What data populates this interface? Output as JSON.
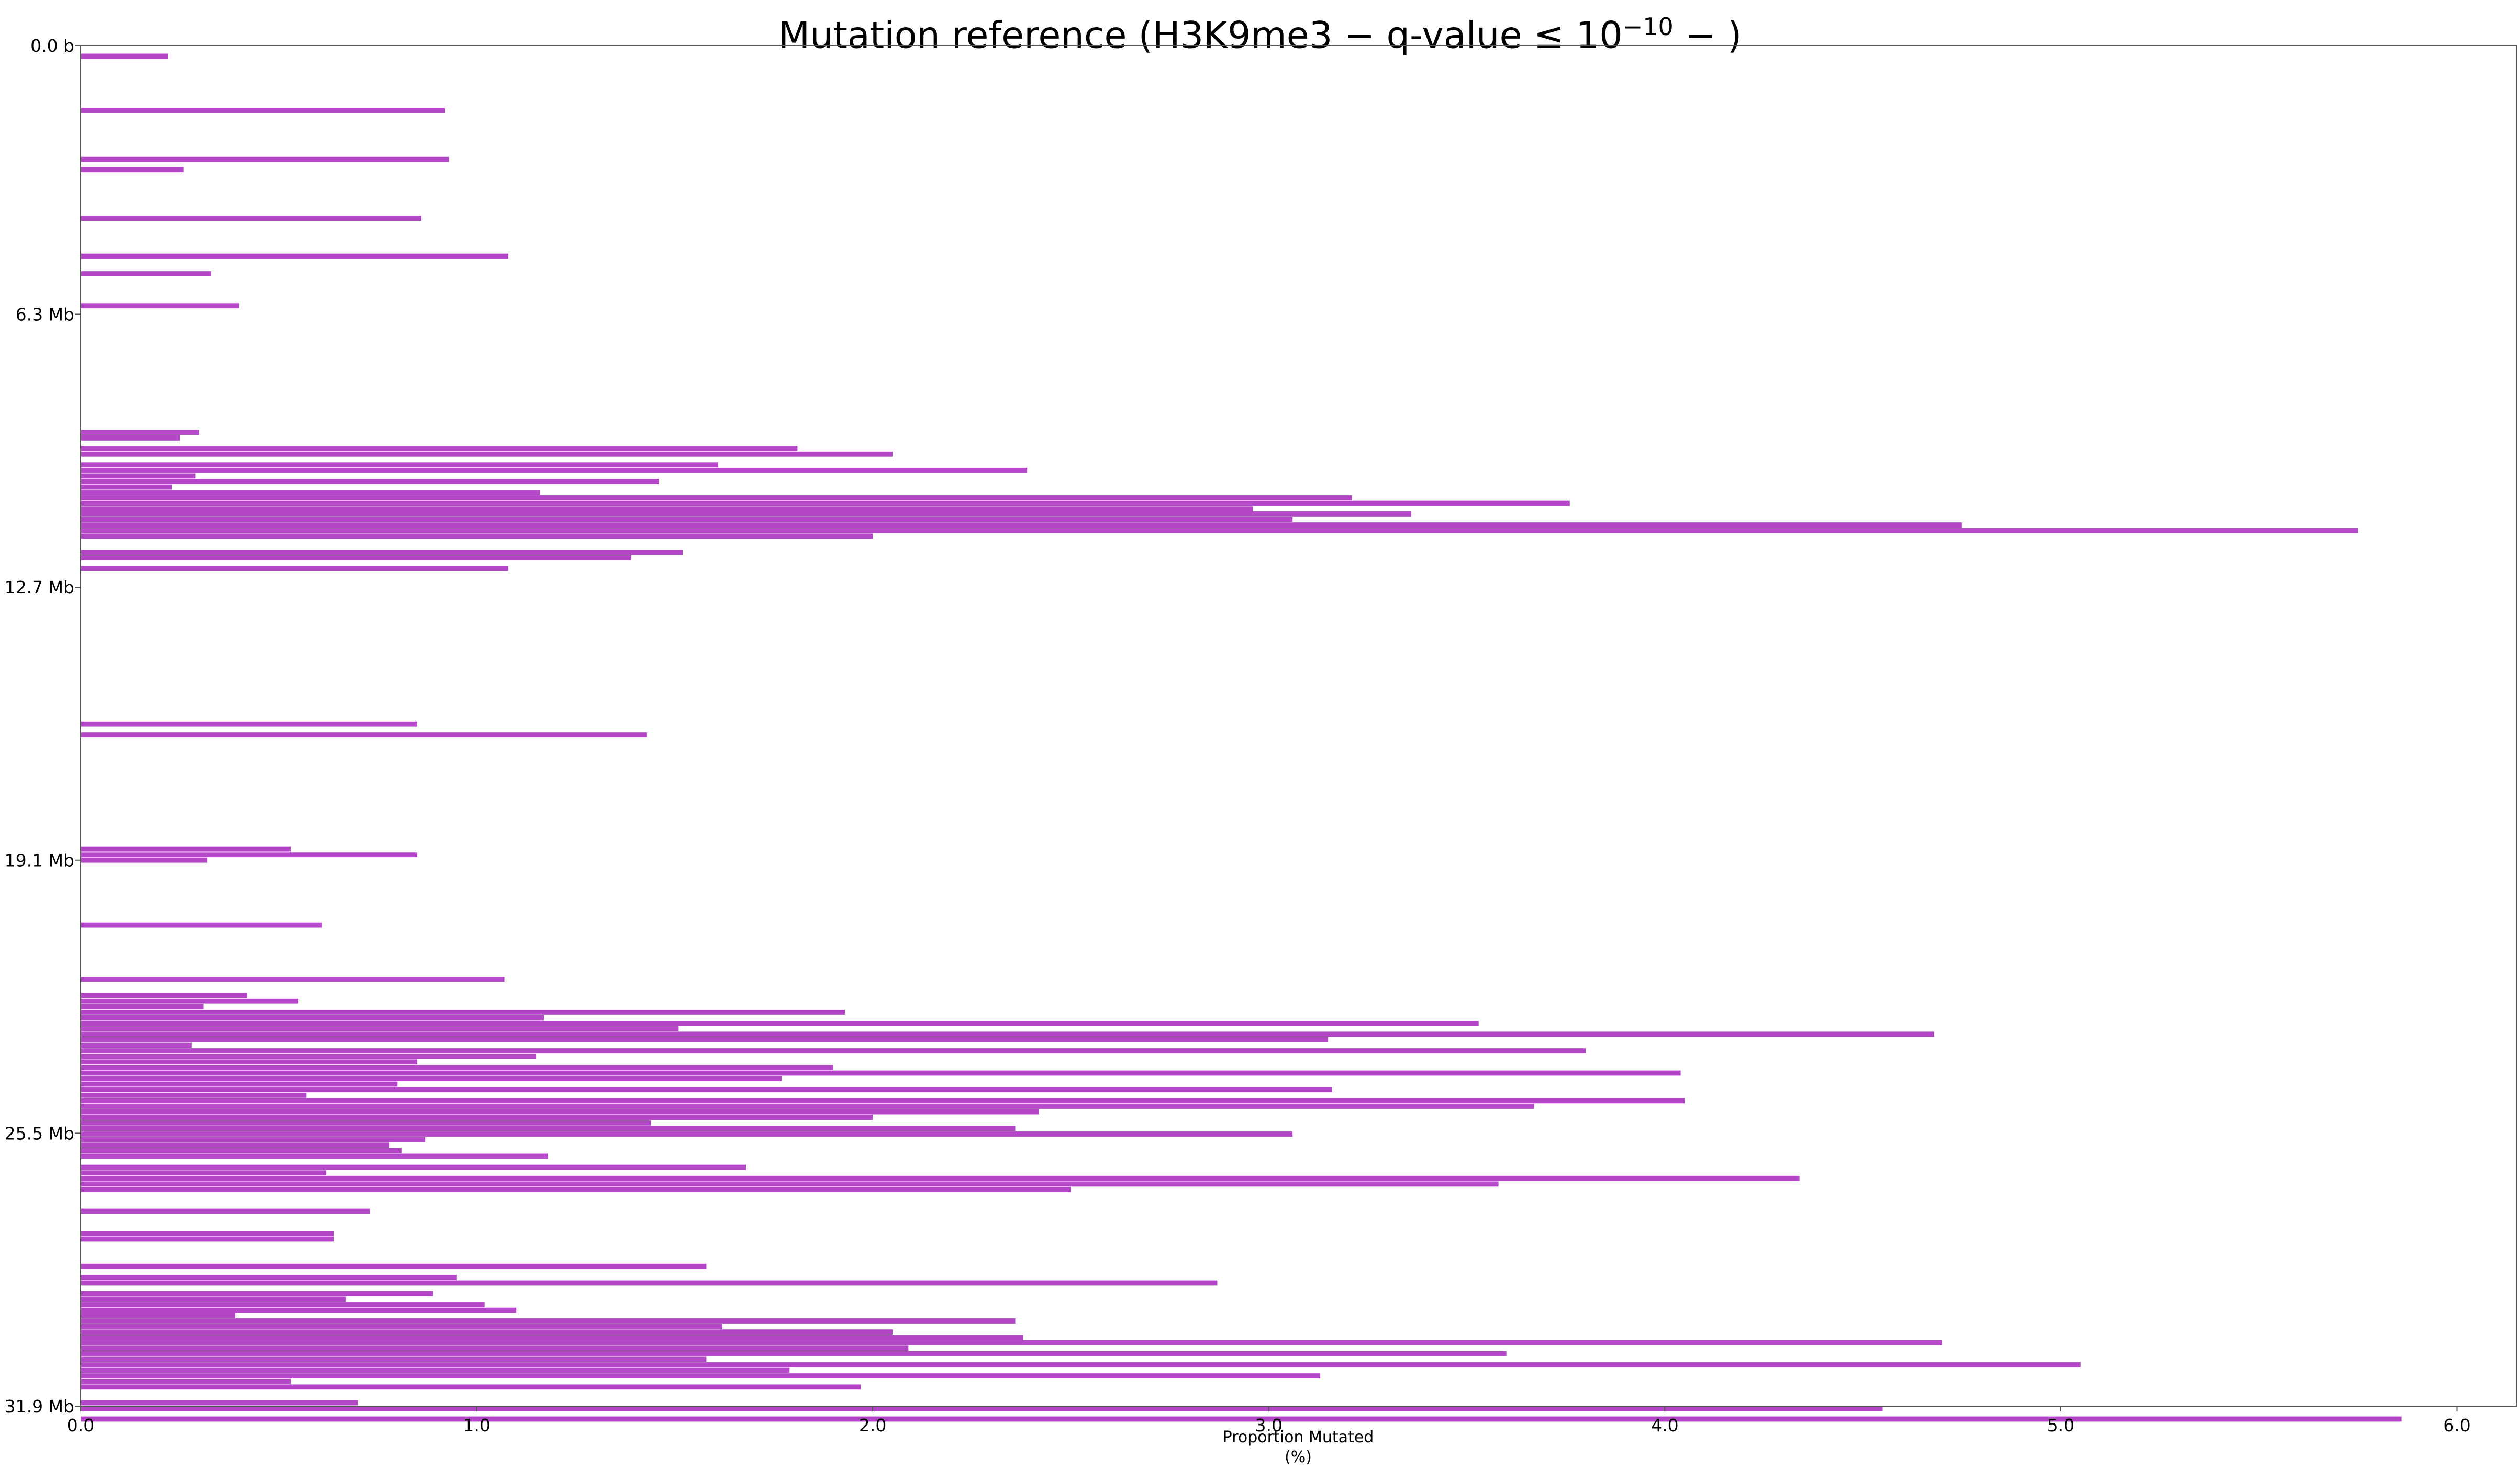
{
  "chart_data": {
    "type": "bar",
    "orientation": "horizontal",
    "title": "Mutation reference (H3K9me3 − q-value ≤ 10⁻¹⁰ − )",
    "title_parts": {
      "prefix": "Mutation reference (H3K9me3 − q-value ≤ 10",
      "exponent": "−10",
      "suffix": " − )"
    },
    "xlabel": "Proportion Mutated",
    "xlabel_unit": "(%)",
    "ylabel": "",
    "xlim": [
      0,
      6.15
    ],
    "ylim": [
      0,
      31.9
    ],
    "y_unit": "Mb",
    "x_ticks": [
      "0.0",
      "1.0",
      "2.0",
      "3.0",
      "4.0",
      "5.0",
      "6.0"
    ],
    "y_ticks": [
      {
        "pos": 0.0,
        "label": "0.0 b"
      },
      {
        "pos": 6.3,
        "label": "6.3 Mb"
      },
      {
        "pos": 12.7,
        "label": "12.7 Mb"
      },
      {
        "pos": 19.1,
        "label": "19.1 Mb"
      },
      {
        "pos": 25.5,
        "label": "25.5 Mb"
      },
      {
        "pos": 31.9,
        "label": "31.9 Mb"
      }
    ],
    "bar_color": "#b446c8",
    "bar_thickness_mb": 0.12,
    "bars": [
      [
        0.25,
        0.22
      ],
      [
        1.52,
        0.92
      ],
      [
        2.67,
        0.93
      ],
      [
        2.91,
        0.26
      ],
      [
        4.05,
        0.86
      ],
      [
        4.94,
        1.08
      ],
      [
        5.35,
        0.33
      ],
      [
        6.1,
        0.4
      ],
      [
        9.07,
        0.3
      ],
      [
        9.2,
        0.25
      ],
      [
        9.45,
        1.81
      ],
      [
        9.58,
        2.05
      ],
      [
        9.83,
        1.61
      ],
      [
        9.96,
        2.39
      ],
      [
        10.09,
        0.29
      ],
      [
        10.22,
        1.46
      ],
      [
        10.35,
        0.23
      ],
      [
        10.48,
        1.16
      ],
      [
        10.6,
        3.21
      ],
      [
        10.73,
        3.76
      ],
      [
        10.86,
        2.96
      ],
      [
        10.98,
        3.36
      ],
      [
        11.11,
        3.06
      ],
      [
        11.24,
        4.75
      ],
      [
        11.37,
        5.75
      ],
      [
        11.5,
        2.0
      ],
      [
        11.88,
        1.52
      ],
      [
        12.01,
        1.39
      ],
      [
        12.26,
        1.08
      ],
      [
        15.91,
        0.85
      ],
      [
        16.16,
        1.43
      ],
      [
        18.84,
        0.53
      ],
      [
        18.97,
        0.85
      ],
      [
        19.1,
        0.32
      ],
      [
        20.62,
        0.61
      ],
      [
        21.89,
        1.07
      ],
      [
        22.27,
        0.42
      ],
      [
        22.4,
        0.55
      ],
      [
        22.53,
        0.31
      ],
      [
        22.66,
        1.93
      ],
      [
        22.79,
        1.17
      ],
      [
        22.92,
        3.53
      ],
      [
        23.05,
        1.51
      ],
      [
        23.18,
        4.68
      ],
      [
        23.31,
        3.15
      ],
      [
        23.44,
        0.28
      ],
      [
        23.57,
        3.8
      ],
      [
        23.7,
        1.15
      ],
      [
        23.83,
        0.85
      ],
      [
        23.96,
        1.9
      ],
      [
        24.09,
        4.04
      ],
      [
        24.22,
        1.77
      ],
      [
        24.35,
        0.8
      ],
      [
        24.48,
        3.16
      ],
      [
        24.61,
        0.57
      ],
      [
        24.74,
        4.05
      ],
      [
        24.87,
        3.67
      ],
      [
        25.0,
        2.42
      ],
      [
        25.13,
        2.0
      ],
      [
        25.26,
        1.44
      ],
      [
        25.39,
        2.36
      ],
      [
        25.52,
        3.06
      ],
      [
        25.65,
        0.87
      ],
      [
        25.78,
        0.78
      ],
      [
        25.91,
        0.81
      ],
      [
        26.04,
        1.18
      ],
      [
        26.3,
        1.68
      ],
      [
        26.43,
        0.62
      ],
      [
        26.56,
        4.34
      ],
      [
        26.69,
        3.58
      ],
      [
        26.82,
        2.5
      ],
      [
        27.33,
        0.73
      ],
      [
        27.85,
        0.64
      ],
      [
        27.98,
        0.64
      ],
      [
        28.62,
        1.58
      ],
      [
        28.88,
        0.95
      ],
      [
        29.01,
        2.87
      ],
      [
        29.26,
        0.89
      ],
      [
        29.39,
        0.67
      ],
      [
        29.52,
        1.02
      ],
      [
        29.65,
        1.1
      ],
      [
        29.77,
        0.39
      ],
      [
        29.9,
        2.36
      ],
      [
        30.03,
        1.62
      ],
      [
        30.16,
        2.05
      ],
      [
        30.29,
        2.38
      ],
      [
        30.41,
        4.7
      ],
      [
        30.54,
        2.09
      ],
      [
        30.67,
        3.6
      ],
      [
        30.8,
        1.58
      ],
      [
        30.93,
        5.05
      ],
      [
        31.06,
        1.79
      ],
      [
        31.19,
        3.13
      ],
      [
        31.32,
        0.53
      ],
      [
        31.45,
        1.97
      ],
      [
        31.82,
        0.7
      ],
      [
        31.95,
        4.55
      ],
      [
        32.2,
        5.86
      ]
    ]
  }
}
